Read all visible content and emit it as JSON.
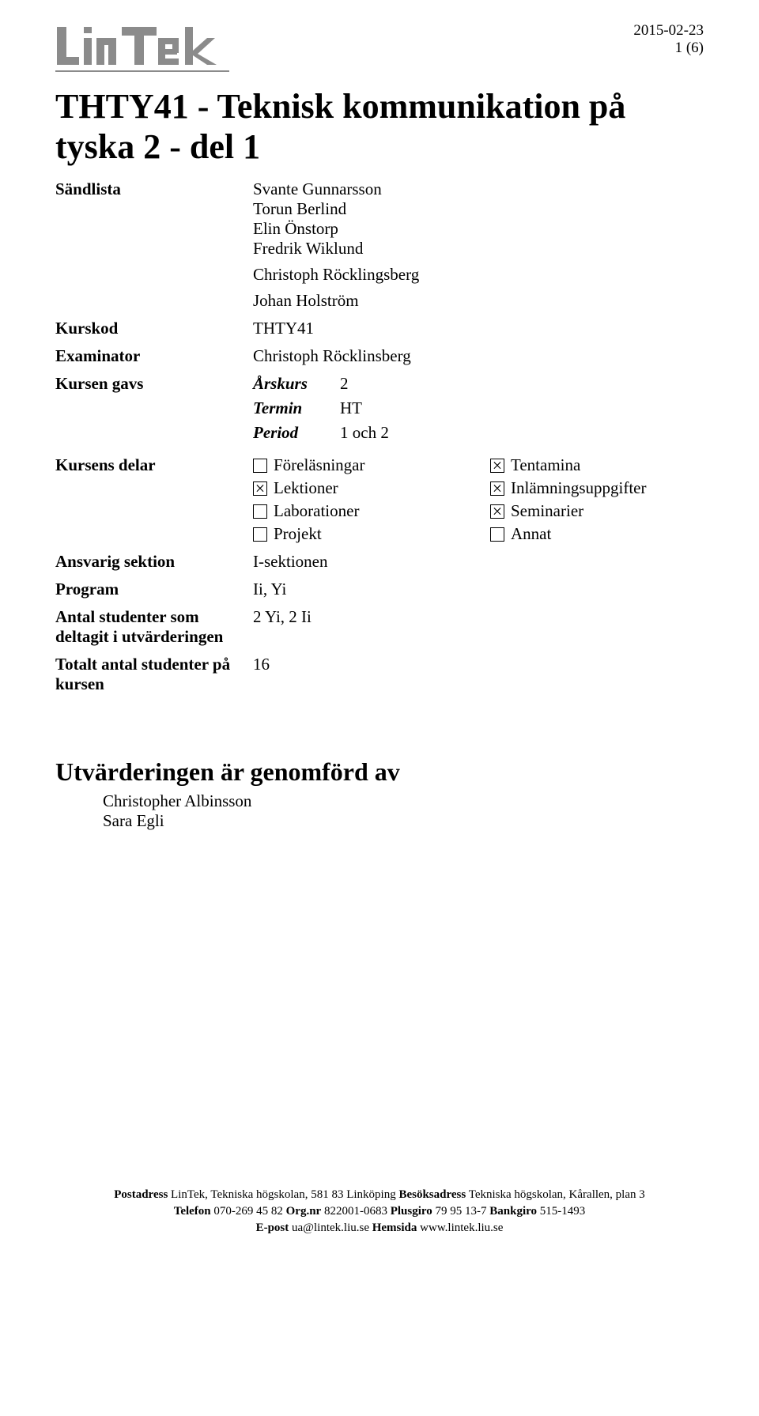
{
  "meta": {
    "date": "2015-02-23",
    "page_label": "1 (6)"
  },
  "title": "THTY41 - Teknisk kommunikation på tyska 2 - del 1",
  "fields": {
    "sandlista_label": "Sändlista",
    "sandlista_values": [
      "Svante Gunnarsson",
      "Torun Berlind",
      "Elin Önstorp",
      "Fredrik Wiklund",
      "Christoph Röcklingsberg",
      "Johan Holström"
    ],
    "kurskod_label": "Kurskod",
    "kurskod_value": "THTY41",
    "examinator_label": "Examinator",
    "examinator_value": "Christoph Röcklinsberg",
    "kursen_gavs_label": "Kursen gavs",
    "arskurs_label": "Årskurs",
    "arskurs_value": "2",
    "termin_label": "Termin",
    "termin_value": "HT",
    "period_label": "Period",
    "period_value": "1 och 2",
    "kursens_delar_label": "Kursens delar",
    "parts": [
      {
        "label": "Föreläsningar",
        "checked": false
      },
      {
        "label": "Tentamina",
        "checked": true
      },
      {
        "label": "Lektioner",
        "checked": true
      },
      {
        "label": "Inlämningsuppgifter",
        "checked": true
      },
      {
        "label": "Laborationer",
        "checked": false
      },
      {
        "label": "Seminarier",
        "checked": true
      },
      {
        "label": "Projekt",
        "checked": false
      },
      {
        "label": "Annat",
        "checked": false
      }
    ],
    "ansvarig_sektion_label": "Ansvarig sektion",
    "ansvarig_sektion_value": "I-sektionen",
    "program_label": "Program",
    "program_value": "Ii, Yi",
    "antal_studenter_label": "Antal studenter som deltagit i utvärderingen",
    "antal_studenter_value": "2 Yi, 2 Ii",
    "totalt_antal_label": "Totalt antal studenter på kursen",
    "totalt_antal_value": "16"
  },
  "evaluation_heading": "Utvärderingen är genomförd av",
  "evaluators": [
    "Christopher Albinsson",
    "Sara Egli"
  ],
  "footer": {
    "postadress_label": "Postadress",
    "postadress_value": "LinTek, Tekniska högskolan, 581 83 Linköping",
    "besoksadress_label": "Besöksadress",
    "besoksadress_value": "Tekniska högskolan, Kårallen, plan 3",
    "telefon_label": "Telefon",
    "telefon_value": "070-269 45 82",
    "orgnr_label": "Org.nr",
    "orgnr_value": "822001-0683",
    "plusgiro_label": "Plusgiro",
    "plusgiro_value": "79 95 13-7",
    "bankgiro_label": "Bankgiro",
    "bankgiro_value": "515-1493",
    "epost_label": "E-post",
    "epost_value": "ua@lintek.liu.se",
    "hemsida_label": "Hemsida",
    "hemsida_value": "www.lintek.liu.se"
  },
  "logo": {
    "fill": "#8b8b8b",
    "stroke": "#8b8b8b"
  }
}
